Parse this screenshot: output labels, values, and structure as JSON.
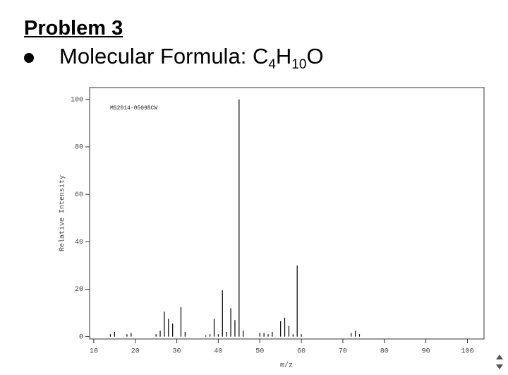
{
  "header": {
    "title": "Problem 3",
    "formula_label": "Molecular Formula:",
    "formula_parts": [
      "C",
      "4",
      "H",
      "10",
      "O"
    ]
  },
  "chart_data": {
    "type": "bar",
    "annotation": "MS2014-05098CW",
    "xlabel": "m/z",
    "ylabel": "Relative Intensity",
    "x": [
      14,
      15,
      18,
      19,
      25,
      26,
      27,
      28,
      29,
      31,
      32,
      37,
      38,
      39,
      40,
      41,
      42,
      43,
      44,
      45,
      46,
      50,
      51,
      52,
      53,
      55,
      56,
      57,
      58,
      59,
      60,
      72,
      73,
      74
    ],
    "values": [
      1,
      2,
      1,
      1.5,
      1,
      2.5,
      10.5,
      7.5,
      5.5,
      12.5,
      2,
      0.5,
      1,
      7.5,
      1,
      19.5,
      2,
      12,
      7,
      100,
      2.5,
      1.5,
      1.5,
      1,
      2,
      6.5,
      8,
      4.5,
      1,
      30,
      1,
      1.5,
      2.5,
      1
    ],
    "color": "#000000",
    "xlim": [
      9,
      104
    ],
    "xticks": [
      10,
      20,
      30,
      40,
      50,
      60,
      70,
      80,
      90,
      100
    ],
    "ylim": [
      -1,
      105
    ],
    "yticks": [
      0,
      20,
      40,
      60,
      80,
      100
    ],
    "grid": false
  }
}
